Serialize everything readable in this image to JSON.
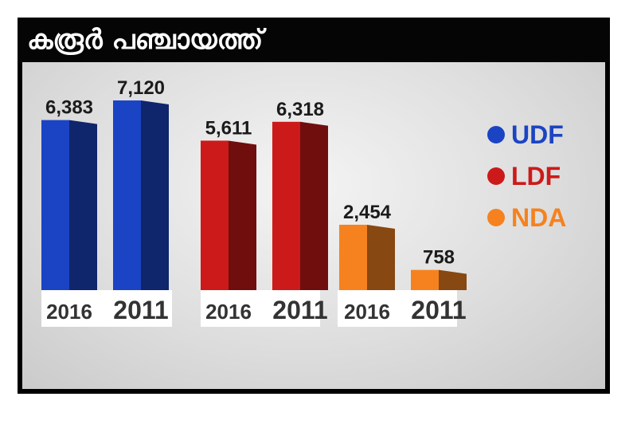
{
  "title": "കരൂർ പഞ്ചായത്ത്",
  "colors": {
    "UDF": "#1b44c4",
    "LDF": "#cc1a1a",
    "NDA": "#f5821f"
  },
  "chart_data": {
    "type": "bar",
    "title": "കരൂർ പഞ്ചായത്ത്",
    "legend": [
      "UDF",
      "LDF",
      "NDA"
    ],
    "legend_position": "right",
    "grid": false,
    "ylim": [
      0,
      8000
    ],
    "categories": [
      "2016",
      "2011"
    ],
    "series": [
      {
        "name": "UDF",
        "values": [
          6383,
          7120
        ],
        "labels": [
          "6,383",
          "7,120"
        ]
      },
      {
        "name": "LDF",
        "values": [
          5611,
          6318
        ],
        "labels": [
          "5,611",
          "6,318"
        ]
      },
      {
        "name": "NDA",
        "values": [
          2454,
          758
        ],
        "labels": [
          "2,454",
          "758"
        ]
      }
    ]
  }
}
